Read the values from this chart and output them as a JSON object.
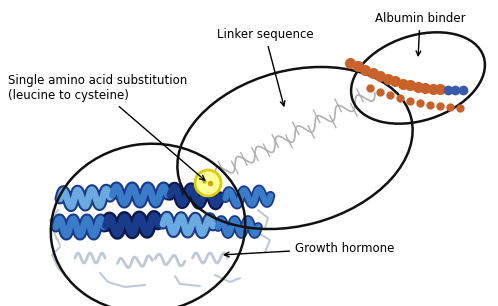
{
  "bg_color": "#ffffff",
  "label_linker": "Linker sequence",
  "label_albumin": "Albumin binder",
  "label_substitution": "Single amino acid substitution\n(leucine to cysteine)",
  "label_growth": "Growth hormone",
  "albumin_bead_color": "#c8622a",
  "albumin_blue_color": "#3a5baa",
  "linker_color": "#b0b0b0",
  "ellipse_color": "#111111",
  "ellipse_lw": 1.8,
  "helix_dark": "#1a3a8a",
  "helix_mid": "#3a7cc8",
  "helix_light": "#6aaae0",
  "helix_silver": "#d0d8e8",
  "coil_color": "#c0c8d8"
}
